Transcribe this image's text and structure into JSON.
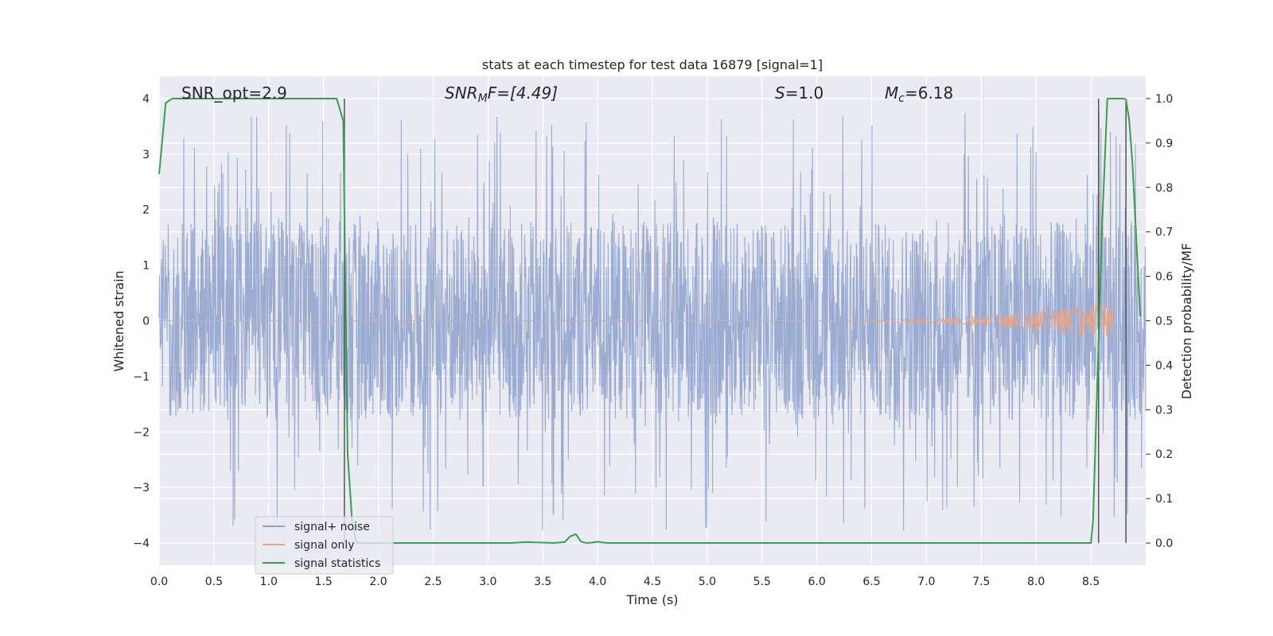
{
  "chart_data": {
    "type": "line",
    "title": "stats at each timestep for test data 16879 [signal=1]",
    "xlabel": "Time (s)",
    "ylabel": "Whitened strain",
    "y2label": "Detection probability/MF",
    "xlim": [
      0,
      9.0
    ],
    "ylim": [
      -4.4,
      4.4
    ],
    "y2lim": [
      -0.05,
      1.05
    ],
    "x_ticks": [
      0.0,
      0.5,
      1.0,
      1.5,
      2.0,
      2.5,
      3.0,
      3.5,
      4.0,
      4.5,
      5.0,
      5.5,
      6.0,
      6.5,
      7.0,
      7.5,
      8.0,
      8.5
    ],
    "x_tick_labels": [
      "0.0",
      "0.5",
      "1.0",
      "1.5",
      "2.0",
      "2.5",
      "3.0",
      "3.5",
      "4.0",
      "4.5",
      "5.0",
      "5.5",
      "6.0",
      "6.5",
      "7.0",
      "7.5",
      "8.0",
      "8.5"
    ],
    "y_ticks": [
      -4,
      -3,
      -2,
      -1,
      0,
      1,
      2,
      3,
      4
    ],
    "y_tick_labels": [
      "−4",
      "−3",
      "−2",
      "−1",
      "0",
      "1",
      "2",
      "3",
      "4"
    ],
    "y2_ticks": [
      0.0,
      0.1,
      0.2,
      0.3,
      0.4,
      0.5,
      0.6,
      0.7,
      0.8,
      0.9,
      1.0
    ],
    "y2_tick_labels": [
      "0.0",
      "0.1",
      "0.2",
      "0.3",
      "0.4",
      "0.5",
      "0.6",
      "0.7",
      "0.8",
      "0.9",
      "1.0"
    ],
    "grid": true,
    "legend_location": "lower-left",
    "annotations": {
      "snr_opt": "SNR_opt=2.9",
      "snr_mf_base": "SNR",
      "snr_mf_sub": "M",
      "snr_mf_rest": "F=[4.49]",
      "s_var": "S",
      "s_rest": "=1.0",
      "mc_var": "M",
      "mc_sub": "c",
      "mc_rest": "=6.18"
    },
    "series": [
      {
        "name": "signal+ noise",
        "color": "#8da0cb",
        "description": "whitened noisy strain, band roughly between -1.7 and 1.7 with peaks to about ±3.9",
        "band_envelope": [
          -1.7,
          1.7
        ],
        "peak_range": [
          -3.9,
          3.8
        ]
      },
      {
        "name": "signal only",
        "color": "#e5a58a",
        "chirp_start": 5.5,
        "chirp_end": 8.7,
        "max_amplitude": 0.35
      },
      {
        "name": "signal statistics",
        "color": "#3a9e4f",
        "axis": "right",
        "x": [
          0.0,
          0.06,
          0.12,
          0.5,
          1.0,
          1.55,
          1.62,
          1.68,
          1.7,
          1.72,
          1.76,
          1.8,
          2.5,
          3.0,
          3.2,
          3.35,
          3.6,
          3.7,
          3.75,
          3.8,
          3.85,
          3.9,
          3.95,
          4.0,
          4.05,
          4.1,
          4.2,
          5.0,
          6.0,
          7.0,
          8.0,
          8.5,
          8.52,
          8.6,
          8.65,
          8.7,
          8.8,
          8.82,
          8.85,
          8.88,
          8.95
        ],
        "values": [
          0.83,
          0.99,
          1.0,
          1.0,
          1.0,
          1.0,
          1.0,
          0.95,
          0.55,
          0.2,
          0.05,
          0.0,
          0.0,
          0.0,
          0.0,
          0.002,
          0.0,
          0.002,
          0.015,
          0.02,
          0.003,
          0.0,
          0.001,
          0.003,
          0.001,
          0.0,
          0.0,
          0.0,
          0.0,
          0.0,
          0.0,
          0.0,
          0.05,
          0.7,
          1.0,
          1.0,
          1.0,
          0.998,
          0.95,
          0.85,
          0.51
        ]
      }
    ],
    "vertical_lines_x": [
      1.69,
      8.57,
      8.82
    ],
    "vertical_lines_color": "#555555"
  }
}
